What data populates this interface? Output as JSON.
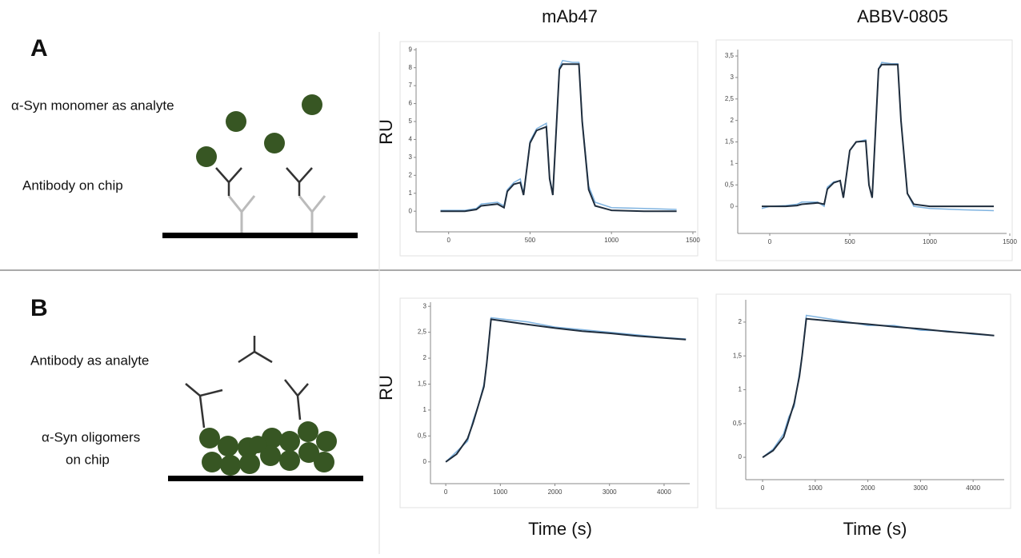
{
  "panels": [
    {
      "label": "A",
      "analyte_text": [
        "α-Syn monomer as analyte"
      ],
      "chip_text": [
        "Antibody on chip"
      ]
    },
    {
      "label": "B",
      "analyte_text": [
        "Antibody as analyte"
      ],
      "chip_text": [
        "α-Syn oligomers",
        "on chip"
      ]
    }
  ],
  "column_titles": [
    "mAb47",
    "ABBV-0805"
  ],
  "chart_data": [
    {
      "type": "line",
      "ylabel": "RU",
      "x": [
        -50,
        0,
        100,
        170,
        200,
        300,
        340,
        360,
        400,
        440,
        460,
        500,
        540,
        600,
        620,
        640,
        680,
        700,
        760,
        800,
        820,
        860,
        900,
        1000,
        1200,
        1400
      ],
      "series": [
        {
          "color": "#7fb3e0",
          "values": [
            0.05,
            0.05,
            0.05,
            0.15,
            0.4,
            0.5,
            0.3,
            1.2,
            1.6,
            1.8,
            1.0,
            3.9,
            4.6,
            4.9,
            1.9,
            1.0,
            8.0,
            8.4,
            8.3,
            8.3,
            5.1,
            1.4,
            0.5,
            0.2,
            0.15,
            0.1
          ]
        },
        {
          "color": "#1f2d3d",
          "values": [
            0,
            0,
            0,
            0.1,
            0.3,
            0.4,
            0.2,
            1.1,
            1.5,
            1.6,
            0.9,
            3.8,
            4.5,
            4.7,
            1.8,
            0.9,
            7.9,
            8.2,
            8.2,
            8.2,
            5,
            1.2,
            0.3,
            0.05,
            0,
            0
          ]
        }
      ],
      "xlim": [
        -200,
        1520
      ],
      "xticks": [
        0,
        500,
        1000,
        1500
      ],
      "ylim": [
        -1.15,
        9.1
      ],
      "yticks": [
        0,
        1,
        2,
        3,
        4,
        5,
        6,
        7,
        8,
        9
      ]
    },
    {
      "type": "line",
      "x": [
        -50,
        0,
        100,
        170,
        200,
        300,
        340,
        360,
        400,
        440,
        460,
        500,
        540,
        600,
        620,
        640,
        680,
        700,
        760,
        800,
        820,
        860,
        900,
        1000,
        1200,
        1400
      ],
      "series": [
        {
          "color": "#7fb3e0",
          "values": [
            -0.05,
            0,
            0.02,
            0.05,
            0.1,
            0.1,
            0,
            0.45,
            0.57,
            0.6,
            0.2,
            1.3,
            1.5,
            1.55,
            0.5,
            0.2,
            3.2,
            3.35,
            3.32,
            3.32,
            2,
            0.3,
            0,
            -0.05,
            -0.08,
            -0.1
          ]
        },
        {
          "color": "#1f2d3d",
          "values": [
            0,
            0,
            0,
            0.02,
            0.05,
            0.08,
            0.05,
            0.4,
            0.55,
            0.6,
            0.2,
            1.3,
            1.5,
            1.52,
            0.5,
            0.2,
            3.2,
            3.3,
            3.3,
            3.3,
            2,
            0.3,
            0.05,
            0,
            0,
            0
          ]
        }
      ],
      "xlim": [
        -200,
        1480
      ],
      "xticks": [
        0,
        500,
        1000,
        1500
      ],
      "ylim": [
        -0.63,
        3.65
      ],
      "yticks": [
        0,
        {
          "value": 0.5,
          "label": "0,5"
        },
        1,
        {
          "value": 1.5,
          "label": "1,5"
        },
        2,
        {
          "value": 2.5,
          "label": "2,5"
        },
        3,
        {
          "value": 3.5,
          "label": "3,5"
        }
      ]
    },
    {
      "type": "line",
      "ylabel": "RU",
      "xlabel": "Time (s)",
      "x": [
        0,
        200,
        400,
        500,
        600,
        700,
        750,
        830,
        1500,
        2000,
        2500,
        3000,
        3500,
        4000,
        4400
      ],
      "series": [
        {
          "color": "#7fb3e0",
          "values": [
            0,
            0.2,
            0.4,
            0.8,
            1.1,
            1.5,
            1.9,
            2.78,
            2.7,
            2.6,
            2.55,
            2.5,
            2.45,
            2.4,
            2.37
          ]
        },
        {
          "color": "#1f2d3d",
          "values": [
            0,
            0.15,
            0.45,
            0.75,
            1.1,
            1.45,
            1.9,
            2.75,
            2.65,
            2.58,
            2.52,
            2.48,
            2.43,
            2.39,
            2.36
          ]
        }
      ],
      "xlim": [
        -280,
        4470
      ],
      "xticks": [
        0,
        1000,
        2000,
        3000,
        4000
      ],
      "ylim": [
        -0.42,
        3.08
      ],
      "yticks": [
        0,
        {
          "value": 0.5,
          "label": "0,5"
        },
        1,
        {
          "value": 1.5,
          "label": "1,5"
        },
        2,
        {
          "value": 2.5,
          "label": "2,5"
        },
        3
      ]
    },
    {
      "type": "line",
      "xlabel": "Time (s)",
      "x": [
        0,
        200,
        400,
        500,
        600,
        700,
        750,
        830,
        1500,
        2000,
        2500,
        3000,
        3500,
        4000,
        4400
      ],
      "series": [
        {
          "color": "#7fb3e0",
          "values": [
            0,
            0.12,
            0.35,
            0.6,
            0.75,
            1.25,
            1.5,
            2.1,
            2.02,
            1.95,
            1.95,
            1.88,
            1.87,
            1.82,
            1.8
          ]
        },
        {
          "color": "#1f2d3d",
          "values": [
            0,
            0.1,
            0.3,
            0.55,
            0.8,
            1.2,
            1.5,
            2.05,
            2.0,
            1.97,
            1.93,
            1.9,
            1.86,
            1.83,
            1.8
          ]
        }
      ],
      "xlim": [
        -320,
        4590
      ],
      "xticks": [
        0,
        1000,
        2000,
        3000,
        4000
      ],
      "ylim": [
        -0.33,
        2.33
      ],
      "yticks": [
        0,
        {
          "value": 0.5,
          "label": "0,5"
        },
        1,
        {
          "value": 1.5,
          "label": "1,5"
        },
        2
      ]
    }
  ]
}
